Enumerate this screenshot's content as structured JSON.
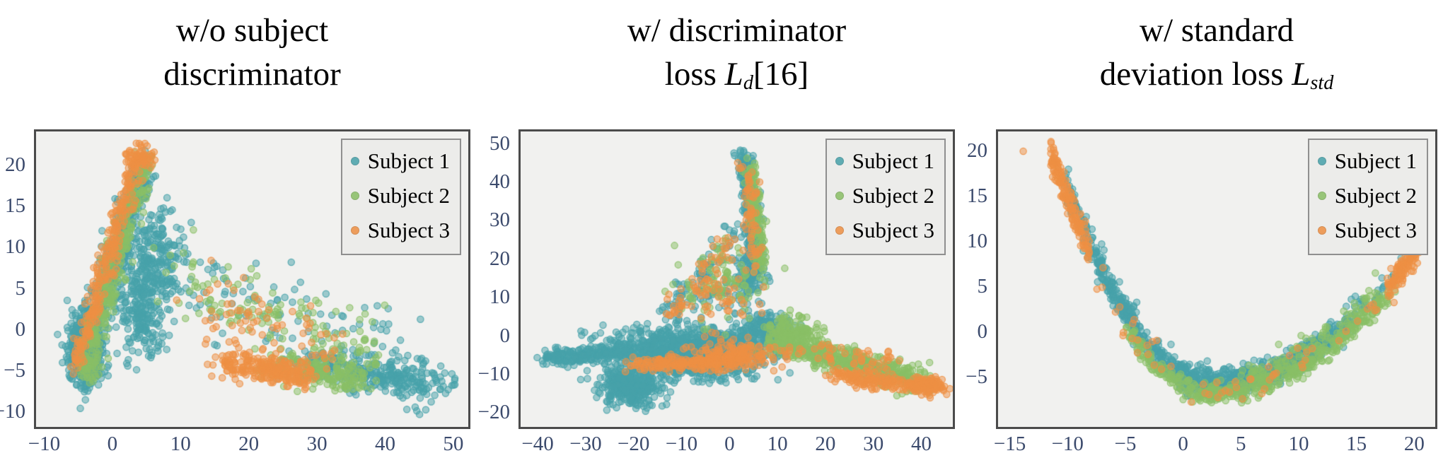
{
  "figure": {
    "legend": {
      "labels": [
        "Subject 1",
        "Subject 2",
        "Subject 3"
      ]
    },
    "colors": {
      "subject1": "#47a2aa",
      "subject2": "#8abf66",
      "subject3": "#ee9044",
      "tick_label": "#3b4a6c",
      "plot_bg": "#f1f1ef",
      "plot_border": "#4b4b4b",
      "legend_bg": "#ececea",
      "legend_border": "#8f8f8f",
      "title_text": "#000000"
    },
    "chart_data": [
      {
        "type": "scatter",
        "title_lines": [
          [
            {
              "t": "w/o subject"
            }
          ],
          [
            {
              "t": "discriminator"
            }
          ]
        ],
        "x": {
          "range": [
            -11.5,
            52.5
          ],
          "ticks": [
            -10,
            0,
            10,
            20,
            30,
            40,
            50
          ]
        },
        "y": {
          "range": [
            -12,
            24.5
          ],
          "ticks": [
            20,
            15,
            10,
            5,
            0,
            -5,
            -10
          ]
        },
        "legend_position": "top-right",
        "grid": false,
        "series": [
          {
            "name": "Subject 1",
            "color_key": "subject1",
            "clusters": [
              {
                "k": "line",
                "n": 450,
                "a": [
                  -5,
                  -5
                ],
                "b": [
                  4.6,
                  20.5
                ],
                "sx": 0.9,
                "sy": 1.2
              },
              {
                "k": "gauss",
                "n": 230,
                "c": [
                  6,
                  9.5
                ],
                "sx": 2.3,
                "sy": 3.2
              },
              {
                "k": "gauss",
                "n": 230,
                "c": [
                  4,
                  2.5
                ],
                "sx": 2.0,
                "sy": 3.0
              },
              {
                "k": "gauss",
                "n": 500,
                "c": [
                  -4.3,
                  -2.2
                ],
                "sx": 1.25,
                "sy": 2.4
              },
              {
                "k": "line",
                "n": 130,
                "a": [
                  9,
                  6
                ],
                "b": [
                  46,
                  -4.5
                ],
                "sx": 1.5,
                "sy": 2.6
              },
              {
                "k": "line",
                "n": 280,
                "a": [
                  28,
                  -4.2
                ],
                "b": [
                  49,
                  -6.8
                ],
                "sx": 1.5,
                "sy": 1.1
              },
              {
                "k": "gauss",
                "n": 8,
                "c": [
                  46,
                  -8.5
                ],
                "sx": 1.5,
                "sy": 0.8
              }
            ]
          },
          {
            "name": "Subject 2",
            "color_key": "subject2",
            "clusters": [
              {
                "k": "line",
                "n": 330,
                "a": [
                  -4.2,
                  -4
                ],
                "b": [
                  4.6,
                  21
                ],
                "sx": 0.8,
                "sy": 1.2
              },
              {
                "k": "line",
                "n": 140,
                "a": [
                  8,
                  6.5
                ],
                "b": [
                  39,
                  -3.5
                ],
                "sx": 1.5,
                "sy": 2.4
              },
              {
                "k": "line",
                "n": 200,
                "a": [
                  23,
                  -4.3
                ],
                "b": [
                  37,
                  -6.3
                ],
                "sx": 1.2,
                "sy": 0.9
              },
              {
                "k": "gauss",
                "n": 40,
                "c": [
                  -3.5,
                  -4.8
                ],
                "sx": 1.0,
                "sy": 0.7
              }
            ]
          },
          {
            "name": "Subject 3",
            "color_key": "subject3",
            "clusters": [
              {
                "k": "line",
                "n": 240,
                "a": [
                  -5.6,
                  -4.2
                ],
                "b": [
                  3.4,
                  20.8
                ],
                "sx": 0.65,
                "sy": 1.0
              },
              {
                "k": "gauss",
                "n": 70,
                "c": [
                  3.9,
                  21.3
                ],
                "sx": 1.0,
                "sy": 0.9
              },
              {
                "k": "line",
                "n": 80,
                "a": [
                  11,
                  4
                ],
                "b": [
                  33,
                  -3
                ],
                "sx": 1.6,
                "sy": 2.2
              },
              {
                "k": "line",
                "n": 230,
                "a": [
                  16,
                  -4.1
                ],
                "b": [
                  29,
                  -5.8
                ],
                "sx": 1.2,
                "sy": 0.75
              }
            ]
          }
        ]
      },
      {
        "type": "scatter",
        "title_lines": [
          [
            {
              "t": "w/ discriminator"
            }
          ],
          [
            {
              "t": "loss "
            },
            {
              "t": "L",
              "style": "italic"
            },
            {
              "t": "d",
              "style": "sub"
            },
            {
              "t": "[16]"
            }
          ]
        ],
        "x": {
          "range": [
            -44,
            47
          ],
          "ticks": [
            -40,
            -30,
            -20,
            -10,
            0,
            10,
            20,
            30,
            40
          ]
        },
        "y": {
          "range": [
            -24,
            54
          ],
          "ticks": [
            50,
            40,
            30,
            20,
            10,
            0,
            -10,
            -20
          ]
        },
        "legend_position": "top-right",
        "grid": false,
        "series": [
          {
            "name": "Subject 1",
            "color_key": "subject1",
            "clusters": [
              {
                "k": "line",
                "n": 330,
                "a": [
                  3.2,
                  48
                ],
                "b": [
                  5.8,
                  17
                ],
                "sx": 0.9,
                "sy": 1.5
              },
              {
                "k": "gauss",
                "n": 90,
                "c": [
                  4,
                  15
                ],
                "sx": 2.0,
                "sy": 3.0
              },
              {
                "k": "line",
                "n": 80,
                "a": [
                  2.5,
                  29
                ],
                "b": [
                  -13,
                  5
                ],
                "sx": 1.4,
                "sy": 1.6
              },
              {
                "k": "gauss",
                "n": 850,
                "c": [
                  -8,
                  -3.2
                ],
                "sx": 10,
                "sy": 2.6,
                "clip": [
                  -33,
                  13
                ]
              },
              {
                "k": "line",
                "n": 220,
                "a": [
                  -38.5,
                  -5.8
                ],
                "b": [
                  -22,
                  -4.2
                ],
                "sx": 1.2,
                "sy": 1.0
              },
              {
                "k": "gauss",
                "n": 160,
                "c": [
                  7.5,
                  1.5
                ],
                "sx": 2.6,
                "sy": 2.0
              },
              {
                "k": "gauss",
                "n": 380,
                "c": [
                  -20.5,
                  -13
                ],
                "sx": 3.2,
                "sy": 2.4
              },
              {
                "k": "gauss",
                "n": 160,
                "c": [
                  -6,
                  -8.5
                ],
                "sx": 6,
                "sy": 1.8
              },
              {
                "k": "gauss",
                "n": 50,
                "c": [
                  -3,
                  10
                ],
                "sx": 4.5,
                "sy": 3.5
              }
            ]
          },
          {
            "name": "Subject 2",
            "color_key": "subject2",
            "clusters": [
              {
                "k": "line",
                "n": 140,
                "a": [
                  4.3,
                  45
                ],
                "b": [
                  6.8,
                  18
                ],
                "sx": 0.8,
                "sy": 1.5
              },
              {
                "k": "gauss",
                "n": 70,
                "c": [
                  0,
                  12
                ],
                "sx": 5,
                "sy": 4.5
              },
              {
                "k": "line",
                "n": 550,
                "a": [
                  10,
                  -1.5
                ],
                "b": [
                  41.5,
                  -12.5
                ],
                "sx": 1.2,
                "sy": 1.7
              },
              {
                "k": "gauss",
                "n": 150,
                "c": [
                  13,
                  0.5
                ],
                "sx": 3.0,
                "sy": 2.2
              },
              {
                "k": "line",
                "n": 30,
                "a": [
                  0,
                  24
                ],
                "b": [
                  -8,
                  9
                ],
                "sx": 1.5,
                "sy": 1.5
              }
            ]
          },
          {
            "name": "Subject 3",
            "color_key": "subject3",
            "clusters": [
              {
                "k": "line",
                "n": 60,
                "a": [
                  3.4,
                  46
                ],
                "b": [
                  5.5,
                  18
                ],
                "sx": 1.0,
                "sy": 2.0
              },
              {
                "k": "line",
                "n": 55,
                "a": [
                  1,
                  26
                ],
                "b": [
                  -12,
                  6
                ],
                "sx": 1.5,
                "sy": 1.6
              },
              {
                "k": "gauss",
                "n": 40,
                "c": [
                  -2,
                  9
                ],
                "sx": 4,
                "sy": 3.5
              },
              {
                "k": "line",
                "n": 240,
                "a": [
                  -20,
                  -7.8
                ],
                "b": [
                  6,
                  -6.2
                ],
                "sx": 1.5,
                "sy": 1.1
              },
              {
                "k": "gauss",
                "n": 110,
                "c": [
                  2,
                  -4.5
                ],
                "sx": 5,
                "sy": 1.5
              },
              {
                "k": "line",
                "n": 180,
                "a": [
                  22,
                  -10.5
                ],
                "b": [
                  42,
                  -13.8
                ],
                "sx": 1.5,
                "sy": 1.0
              },
              {
                "k": "gauss",
                "n": 90,
                "c": [
                  42.5,
                  -13.2
                ],
                "sx": 1.6,
                "sy": 1.0
              },
              {
                "k": "line",
                "n": 50,
                "a": [
                  15,
                  -3
                ],
                "b": [
                  35,
                  -9
                ],
                "sx": 2.0,
                "sy": 2.0
              }
            ]
          }
        ]
      },
      {
        "type": "scatter",
        "title_lines": [
          [
            {
              "t": "w/ standard"
            }
          ],
          [
            {
              "t": "deviation loss "
            },
            {
              "t": "L",
              "style": "italic"
            },
            {
              "t": "std",
              "style": "sub"
            }
          ]
        ],
        "x": {
          "range": [
            -16.2,
            22
          ],
          "ticks": [
            -15,
            -10,
            -5,
            0,
            5,
            10,
            15,
            20
          ]
        },
        "y": {
          "range": [
            -10.6,
            22.5
          ],
          "ticks": [
            20,
            15,
            10,
            5,
            0,
            -5
          ]
        },
        "legend_position": "top-right",
        "grid": false,
        "curve": {
          "vertex": [
            2.5,
            -6.5
          ],
          "k_left": 0.1317,
          "k_right": 0.04735
        },
        "series": [
          {
            "name": "Subject 1",
            "color_key": "subject1",
            "clusters": [
              {
                "k": "parab",
                "n": 950,
                "xr": [
                  -10.8,
                  20
                ],
                "dy": 0.9,
                "sy": 0.75,
                "xdist": "center"
              },
              {
                "k": "parab",
                "n": 150,
                "xr": [
                  -10.5,
                  -4
                ],
                "dy": 1.6,
                "sy": 0.9
              }
            ]
          },
          {
            "name": "Subject 2",
            "color_key": "subject2",
            "clusters": [
              {
                "k": "parab",
                "n": 420,
                "xr": [
                  -5,
                  18.5
                ],
                "dy": -0.4,
                "sy": 0.55
              },
              {
                "k": "parab",
                "n": 120,
                "xr": [
                  5,
                  17
                ],
                "dy": 1.2,
                "sy": 0.9
              }
            ]
          },
          {
            "name": "Subject 3",
            "color_key": "subject3",
            "clusters": [
              {
                "k": "parab",
                "n": 160,
                "xr": [
                  -11.6,
                  -8.2
                ],
                "dy": 0.6,
                "sy": 0.9
              },
              {
                "k": "parab",
                "n": 110,
                "xr": [
                  17.8,
                  20.6
                ],
                "dy": 0.3,
                "sy": 0.7
              },
              {
                "k": "parab",
                "n": 55,
                "xr": [
                  -8,
                  17
                ],
                "dy": 0,
                "sy": 1.0
              },
              {
                "k": "gauss",
                "n": 1,
                "c": [
                  -14,
                  20.3
                ],
                "sx": 0.01,
                "sy": 0.01
              }
            ]
          }
        ]
      }
    ]
  }
}
